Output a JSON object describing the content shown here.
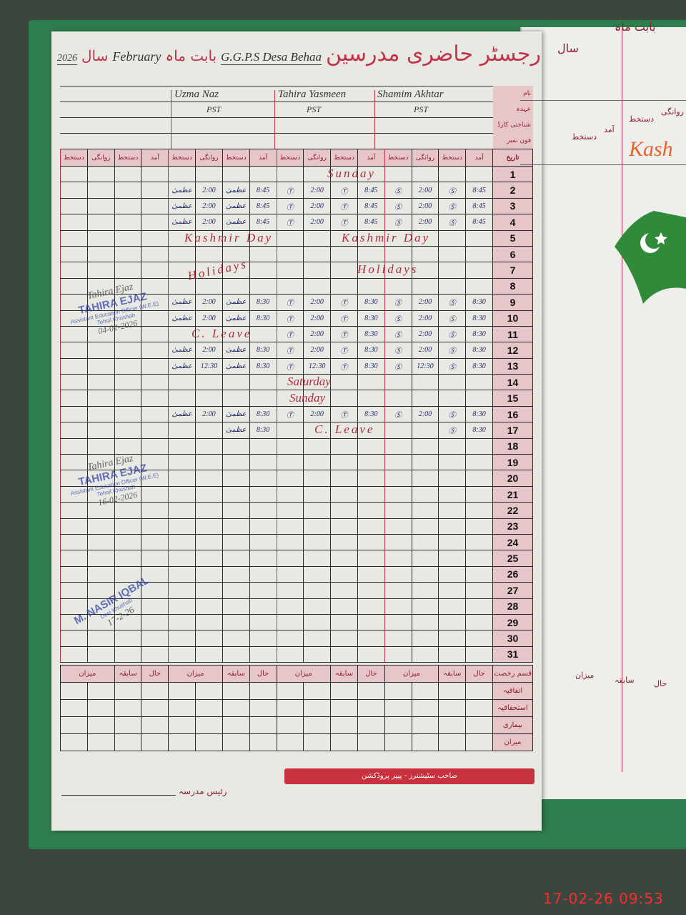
{
  "title": {
    "register_urdu": "رجسٹر حاضری مدرسین",
    "school": "G.G.P.S Desa Behaa",
    "month_label": "بابت ماہ",
    "month": "February",
    "year_label": "سال",
    "year": "2026"
  },
  "header_labels": [
    "نام",
    "عہدہ",
    "شناختی کارڈ نمبر",
    "فون نمبر"
  ],
  "teachers": [
    {
      "name": "Shamim Akhtar",
      "designation": "PST",
      "sig": "Ⓢ"
    },
    {
      "name": "Tahira Yasmeen",
      "designation": "PST",
      "sig": "Ⓣ"
    },
    {
      "name": "Uzma Naz",
      "designation": "PST",
      "sig": "عظمیٰ"
    }
  ],
  "columns": {
    "date": "تاریخ",
    "arrival": "آمد",
    "signature": "دستخط",
    "departure": "روانگی"
  },
  "days": [
    {
      "d": "1",
      "e": []
    },
    {
      "d": "2",
      "e": [
        [
          "8:45",
          "2:00"
        ],
        [
          "8:45",
          "2:00"
        ],
        [
          "8:45",
          "2:00"
        ]
      ]
    },
    {
      "d": "3",
      "e": [
        [
          "8:45",
          "2:00"
        ],
        [
          "8:45",
          "2:00"
        ],
        [
          "8:45",
          "2:00"
        ]
      ]
    },
    {
      "d": "4",
      "e": [
        [
          "8:45",
          "2:00"
        ],
        [
          "8:45",
          "2:00"
        ],
        [
          "8:45",
          "2:00"
        ]
      ]
    },
    {
      "d": "5",
      "e": []
    },
    {
      "d": "6",
      "e": []
    },
    {
      "d": "7",
      "e": []
    },
    {
      "d": "8",
      "e": []
    },
    {
      "d": "9",
      "e": [
        [
          "8:30",
          "2:00"
        ],
        [
          "8:30",
          "2:00"
        ],
        [
          "8:30",
          "2:00"
        ]
      ]
    },
    {
      "d": "10",
      "e": [
        [
          "8:30",
          "2:00"
        ],
        [
          "8:30",
          "2:00"
        ],
        [
          "8:30",
          "2:00"
        ]
      ]
    },
    {
      "d": "11",
      "e": [
        [
          "8:30",
          "2:00"
        ],
        [
          "8:30",
          "2:00"
        ],
        null
      ]
    },
    {
      "d": "12",
      "e": [
        [
          "8:30",
          "2:00"
        ],
        [
          "8:30",
          "2:00"
        ],
        [
          "8:30",
          "2:00"
        ]
      ]
    },
    {
      "d": "13",
      "e": [
        [
          "8:30",
          "12:30"
        ],
        [
          "8:30",
          "12:30"
        ],
        [
          "8:30",
          "12:30"
        ]
      ]
    },
    {
      "d": "14",
      "e": []
    },
    {
      "d": "15",
      "e": []
    },
    {
      "d": "16",
      "e": [
        [
          "8:30",
          "2:00"
        ],
        [
          "8:30",
          "2:00"
        ],
        [
          "8:30",
          "2:00"
        ]
      ]
    },
    {
      "d": "17",
      "e": [
        [
          "8:30",
          ""
        ],
        null,
        [
          "8:30",
          ""
        ]
      ]
    },
    {
      "d": "18",
      "e": []
    },
    {
      "d": "19",
      "e": []
    },
    {
      "d": "20",
      "e": []
    },
    {
      "d": "21",
      "e": []
    },
    {
      "d": "22",
      "e": []
    },
    {
      "d": "23",
      "e": []
    },
    {
      "d": "24",
      "e": []
    },
    {
      "d": "25",
      "e": []
    },
    {
      "d": "26",
      "e": []
    },
    {
      "d": "27",
      "e": []
    },
    {
      "d": "28",
      "e": []
    },
    {
      "d": "29",
      "e": []
    },
    {
      "d": "30",
      "e": []
    },
    {
      "d": "31",
      "e": []
    }
  ],
  "notes": {
    "sunday1": "Sunday",
    "kashmir1": "Kashmir Day",
    "kashmir2": "Kashmir Day",
    "holidays1": "Holidays",
    "holidays2": "Holidays",
    "leave_uzma": "C. Leave",
    "saturday": "Saturday",
    "sunday2": "Sunday",
    "leave_tahira": "C. Leave"
  },
  "summary": {
    "leave_type": "قسم رخصت",
    "cols": [
      "حال",
      "سابقہ",
      "میزان"
    ],
    "rows": [
      "اتفاقیہ",
      "استحقاقیہ",
      "بیماری",
      "میزان"
    ]
  },
  "stamps": [
    {
      "name": "TAHIRA EJAZ",
      "title": "Assistant Education Officer (W.E.E)",
      "place": "Tehsil Khushab",
      "date": "04-02-2026",
      "sign": "Tahira Ejaz"
    },
    {
      "name": "TAHIRA EJAZ",
      "title": "Assistant Education Officer (W.E.E)",
      "place": "Tehsil Khushab",
      "date": "16-02-2026",
      "sign": "Tahira Ejaz"
    },
    {
      "name": "M. NASIR IQBAL",
      "place": "Desi Khushab",
      "date": "17-2-26"
    }
  ],
  "footer": {
    "printer": "صاحب سٹیشنرز - پیپر پروڈکشن",
    "principal": "رئیس مدرسہ"
  },
  "right_page": {
    "month_label": "بابت ماہ",
    "year_label": "سال",
    "cols": [
      "روانگی",
      "دستخط",
      "آمد",
      "دستخط"
    ],
    "note": "Kash",
    "sum_cols": [
      "حال",
      "سابقہ",
      "میزان"
    ]
  },
  "timestamp": "17-02-26  09:53",
  "colors": {
    "red_ink": "#c0334a",
    "blue_ink": "#1d2a6a",
    "cover": "#2e7d4e",
    "timestamp": "#ff2b2b"
  }
}
